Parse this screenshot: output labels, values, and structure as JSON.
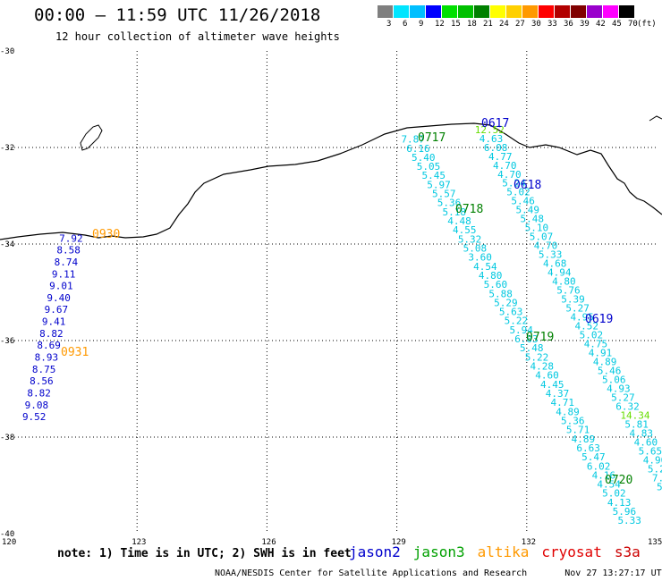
{
  "header": {
    "title": "00:00 – 11:59 UTC 11/26/2018",
    "subtitle": "12 hour collection of altimeter wave heights"
  },
  "colorbar": {
    "colors": [
      "#7f7f7f",
      "#00e5ff",
      "#00bfff",
      "#0000ff",
      "#00e000",
      "#00c000",
      "#008000",
      "#ffff00",
      "#ffd000",
      "#ff9900",
      "#ff0000",
      "#b20000",
      "#800000",
      "#9900cc",
      "#ff00ff",
      "#000000"
    ],
    "ticks": [
      "3",
      "6",
      "9",
      "12",
      "15",
      "18",
      "21",
      "24",
      "27",
      "30",
      "33",
      "36",
      "39",
      "42",
      "45",
      "70"
    ],
    "unit": "(ft)"
  },
  "axes": {
    "lon_labels": [
      "120",
      "123",
      "126",
      "129",
      "132",
      "135"
    ],
    "lat_labels": [
      "-30",
      "-32",
      "-34",
      "-36",
      "-38",
      "-40"
    ],
    "lon_range": [
      120,
      135
    ],
    "lat_range": [
      -30,
      -40
    ]
  },
  "passes": [
    {
      "label": "0930",
      "color": "#ff9900"
    },
    {
      "label": "0931",
      "color": "#ff9900"
    },
    {
      "label": "0617",
      "color": "#0000cc"
    },
    {
      "label": "0618",
      "color": "#0000cc"
    },
    {
      "label": "0619",
      "color": "#0000cc"
    },
    {
      "label": "0717",
      "color": "#008000"
    },
    {
      "label": "0718",
      "color": "#008000"
    },
    {
      "label": "0719",
      "color": "#008000"
    },
    {
      "label": "0720",
      "color": "#008000"
    }
  ],
  "tracks": [
    {
      "name": "jason2 0930-0931",
      "color": "#0000cc",
      "start": [
        121.2,
        -33.95
      ],
      "end": [
        120.35,
        -37.65
      ],
      "values": [
        "7.92",
        "8.58",
        "8.74",
        "9.11",
        "9.01",
        "9.40",
        "9.67",
        "9.41",
        "8.82",
        "8.69",
        "8.93",
        "8.75",
        "8.56",
        "8.82",
        "9.08",
        "9.52"
      ]
    },
    {
      "name": "jason3 0717-0719",
      "color": "#00c8e0",
      "start": [
        129.1,
        -31.9
      ],
      "end": [
        134.1,
        -39.8
      ],
      "values": [
        "7.87",
        "6.16",
        "5.40",
        "5.05",
        "5.45",
        "5.97",
        "5.57",
        "5.36",
        "5.18",
        "4.48",
        "4.55",
        "5.32",
        "5.08",
        "3.60",
        "4.54",
        "4.80",
        "5.60",
        "5.88",
        "5.29",
        "5.63",
        "5.22",
        "5.94",
        "6.03",
        "5.48",
        "5.22",
        "4.28",
        "4.60",
        "4.45",
        "4.37",
        "4.71",
        "4.89",
        "5.36",
        "5.71",
        "4.89",
        "6.63",
        "5.47",
        "6.02",
        "4.16",
        "4.54",
        "5.02",
        "4.13",
        "5.96",
        "5.33"
      ]
    },
    {
      "name": "jason2 0617-0619",
      "color": "#00c8e0",
      "start": [
        130.8,
        -31.7
      ],
      "end": [
        135.0,
        -39.1
      ],
      "values": [
        "12.52",
        "4.63",
        "6.08",
        "4.77",
        "4.70",
        "4.70",
        "5.24",
        "5.02",
        "5.46",
        "5.49",
        "5.48",
        "5.10",
        "5.07",
        "4.70",
        "5.33",
        "4.68",
        "4.94",
        "4.80",
        "5.76",
        "5.39",
        "5.27",
        "4.95",
        "4.52",
        "5.02",
        "4.75",
        "4.91",
        "4.89",
        "5.46",
        "5.06",
        "4.93",
        "5.27",
        "6.32",
        "14.34",
        "5.81",
        "4.83",
        "4.60",
        "5.65",
        "4.90",
        "5.24",
        "7.33",
        "5.82"
      ]
    }
  ],
  "note": "note: 1) Time is in UTC; 2) SWH is in feet",
  "legend": [
    {
      "label": "jason2",
      "color": "#0000cc"
    },
    {
      "label": "jason3",
      "color": "#00a000"
    },
    {
      "label": "altika",
      "color": "#ff9900"
    },
    {
      "label": "cryosat",
      "color": "#e00000"
    },
    {
      "label": "s3a",
      "color": "#cc0000"
    }
  ],
  "footer": {
    "center": "NOAA/NESDIS Center for Satellite Applications and Research",
    "timestamp": "Nov 27 13:27:17 UTC 2018"
  }
}
